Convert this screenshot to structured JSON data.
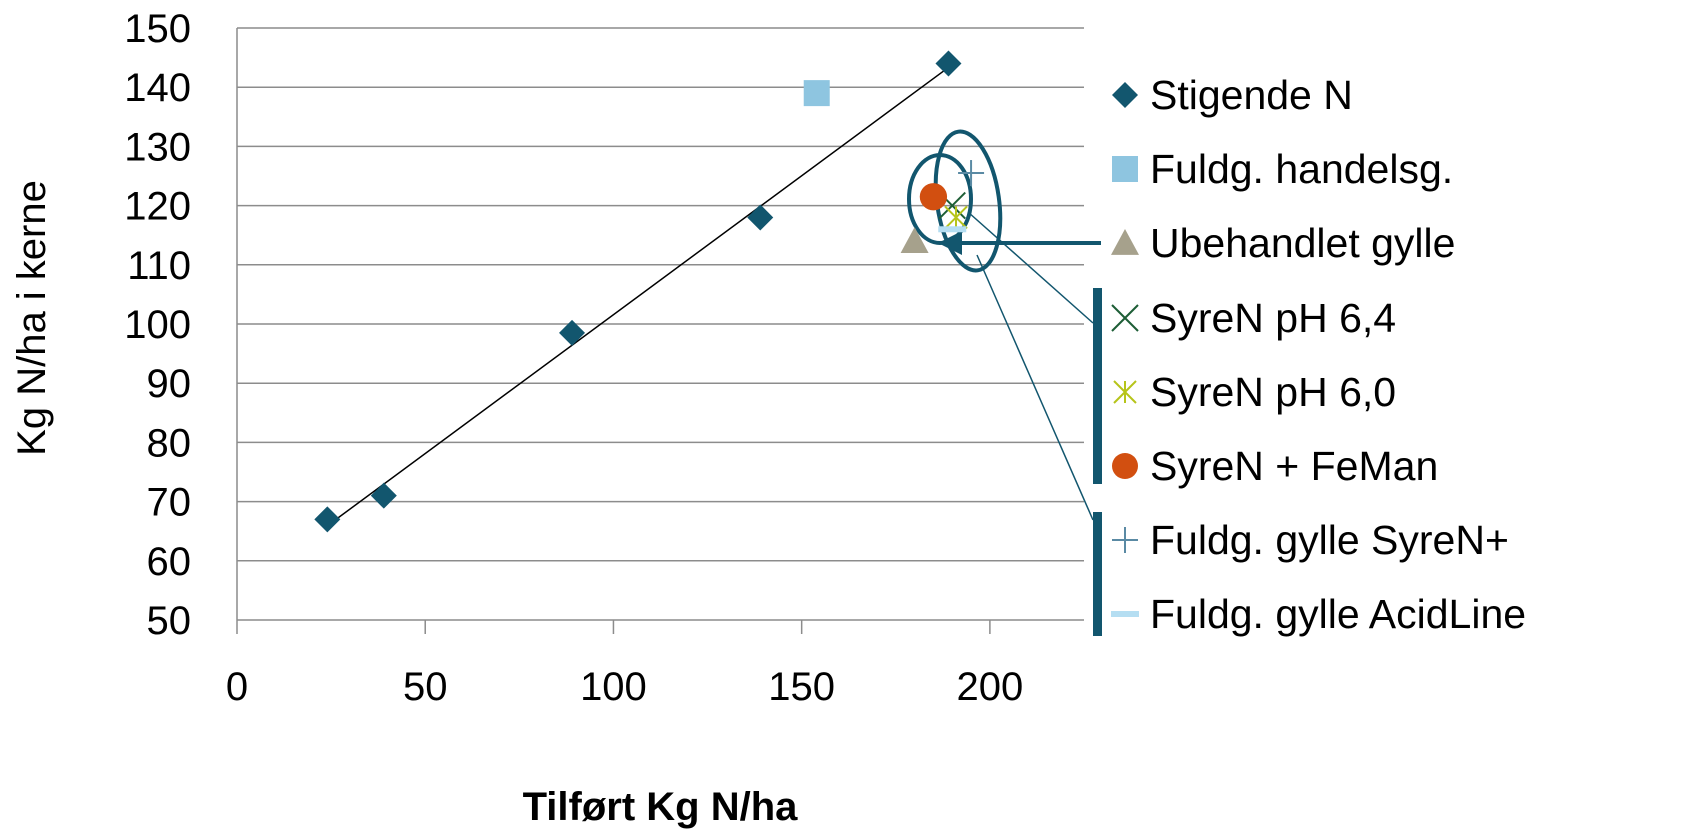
{
  "chart_data": {
    "type": "scatter",
    "title": "",
    "xlabel": "Tilført Kg N/ha",
    "ylabel": "Kg N/ha i kerne",
    "xlim": [
      0,
      225
    ],
    "ylim": [
      50,
      150
    ],
    "x_ticks": [
      "0",
      "50",
      "100",
      "150",
      "200"
    ],
    "y_ticks": [
      "50",
      "60",
      "70",
      "80",
      "90",
      "100",
      "110",
      "120",
      "130",
      "140",
      "150"
    ],
    "grid": "horizontal",
    "legend_position": "right",
    "trendline": {
      "series": "Stigende N",
      "type": "linear",
      "x_range": [
        24,
        189
      ]
    },
    "series": [
      {
        "name": "Stigende N",
        "marker": "diamond",
        "color": "#12566e",
        "points": [
          [
            24,
            67
          ],
          [
            39,
            71
          ],
          [
            89,
            98.5
          ],
          [
            139,
            118
          ],
          [
            189,
            144
          ]
        ]
      },
      {
        "name": "Fuldg. handelsg.",
        "marker": "square",
        "color": "#8ec5e0",
        "points": [
          [
            154,
            139
          ]
        ]
      },
      {
        "name": "Ubehandlet gylle",
        "marker": "triangle",
        "color": "#a6a18c",
        "points": [
          [
            180,
            114
          ]
        ]
      },
      {
        "name": "SyreN pH 6,4",
        "marker": "x",
        "color": "#1d5e36",
        "points": [
          [
            190,
            120
          ]
        ]
      },
      {
        "name": "SyreN pH 6,0",
        "marker": "asterisk",
        "color": "#b6c41a",
        "points": [
          [
            191,
            118
          ]
        ]
      },
      {
        "name": "SyreN + FeMan",
        "marker": "circle",
        "color": "#d24f10",
        "points": [
          [
            185,
            121.5
          ]
        ]
      },
      {
        "name": "Fuldg. gylle SyreN+",
        "marker": "plus",
        "color": "#5a8aa4",
        "points": [
          [
            195,
            125.5
          ]
        ]
      },
      {
        "name": "Fuldg. gylle AcidLine",
        "marker": "dash",
        "color": "#b5def2",
        "points": [
          [
            190,
            116
          ]
        ]
      }
    ]
  }
}
